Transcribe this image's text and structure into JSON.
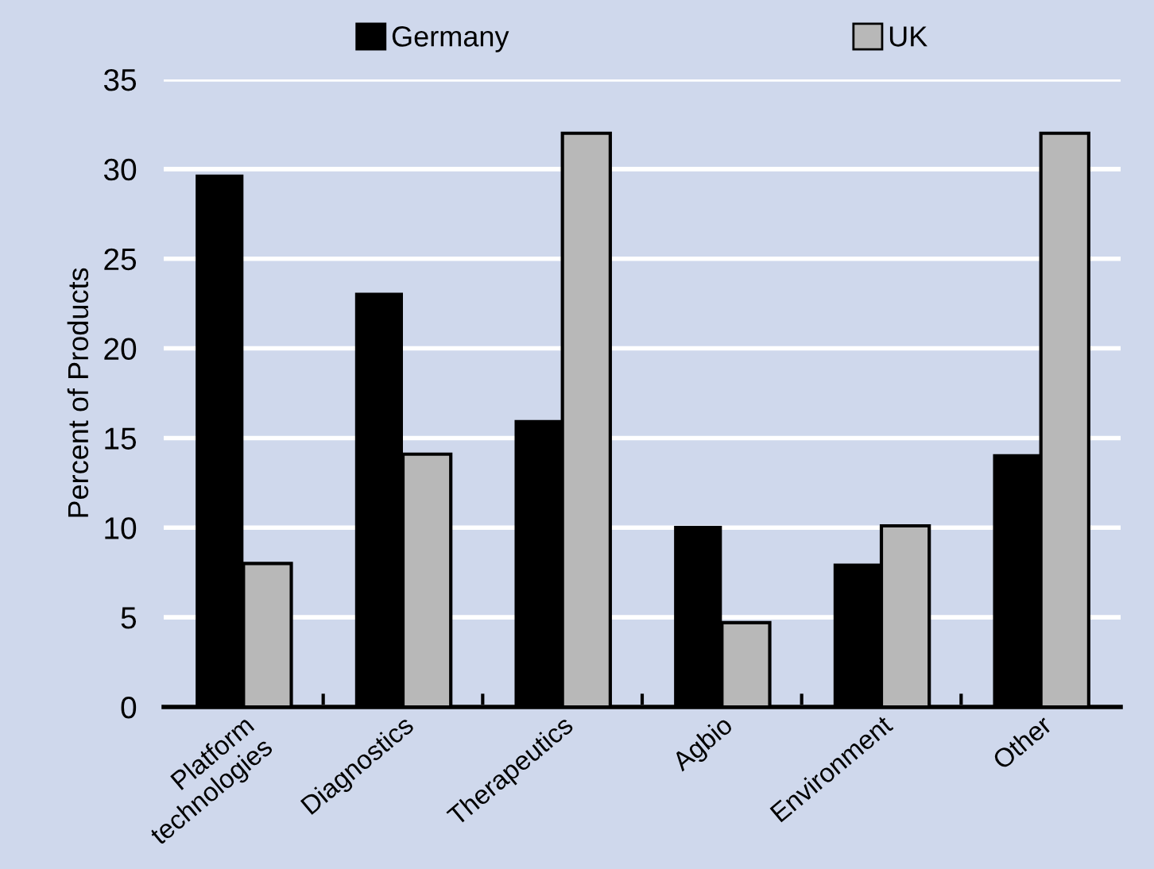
{
  "chart_data": {
    "type": "bar",
    "ylabel": "Percent of Products",
    "categories": [
      "Platform\ntechnologies",
      "Diagnostics",
      "Therapeutics",
      "Agbio",
      "Environment",
      "Other"
    ],
    "series": [
      {
        "name": "Germany",
        "color": "#000000",
        "values": [
          29.7,
          23.1,
          16,
          10.1,
          8,
          14.1
        ]
      },
      {
        "name": "UK",
        "color": "#b8b8b8",
        "values": [
          8,
          14.1,
          32,
          4.7,
          10.1,
          32
        ]
      }
    ],
    "ylim": [
      0,
      35
    ],
    "yticks": [
      0,
      5,
      10,
      15,
      20,
      25,
      30,
      35
    ],
    "grid": "y",
    "legend": "top"
  }
}
